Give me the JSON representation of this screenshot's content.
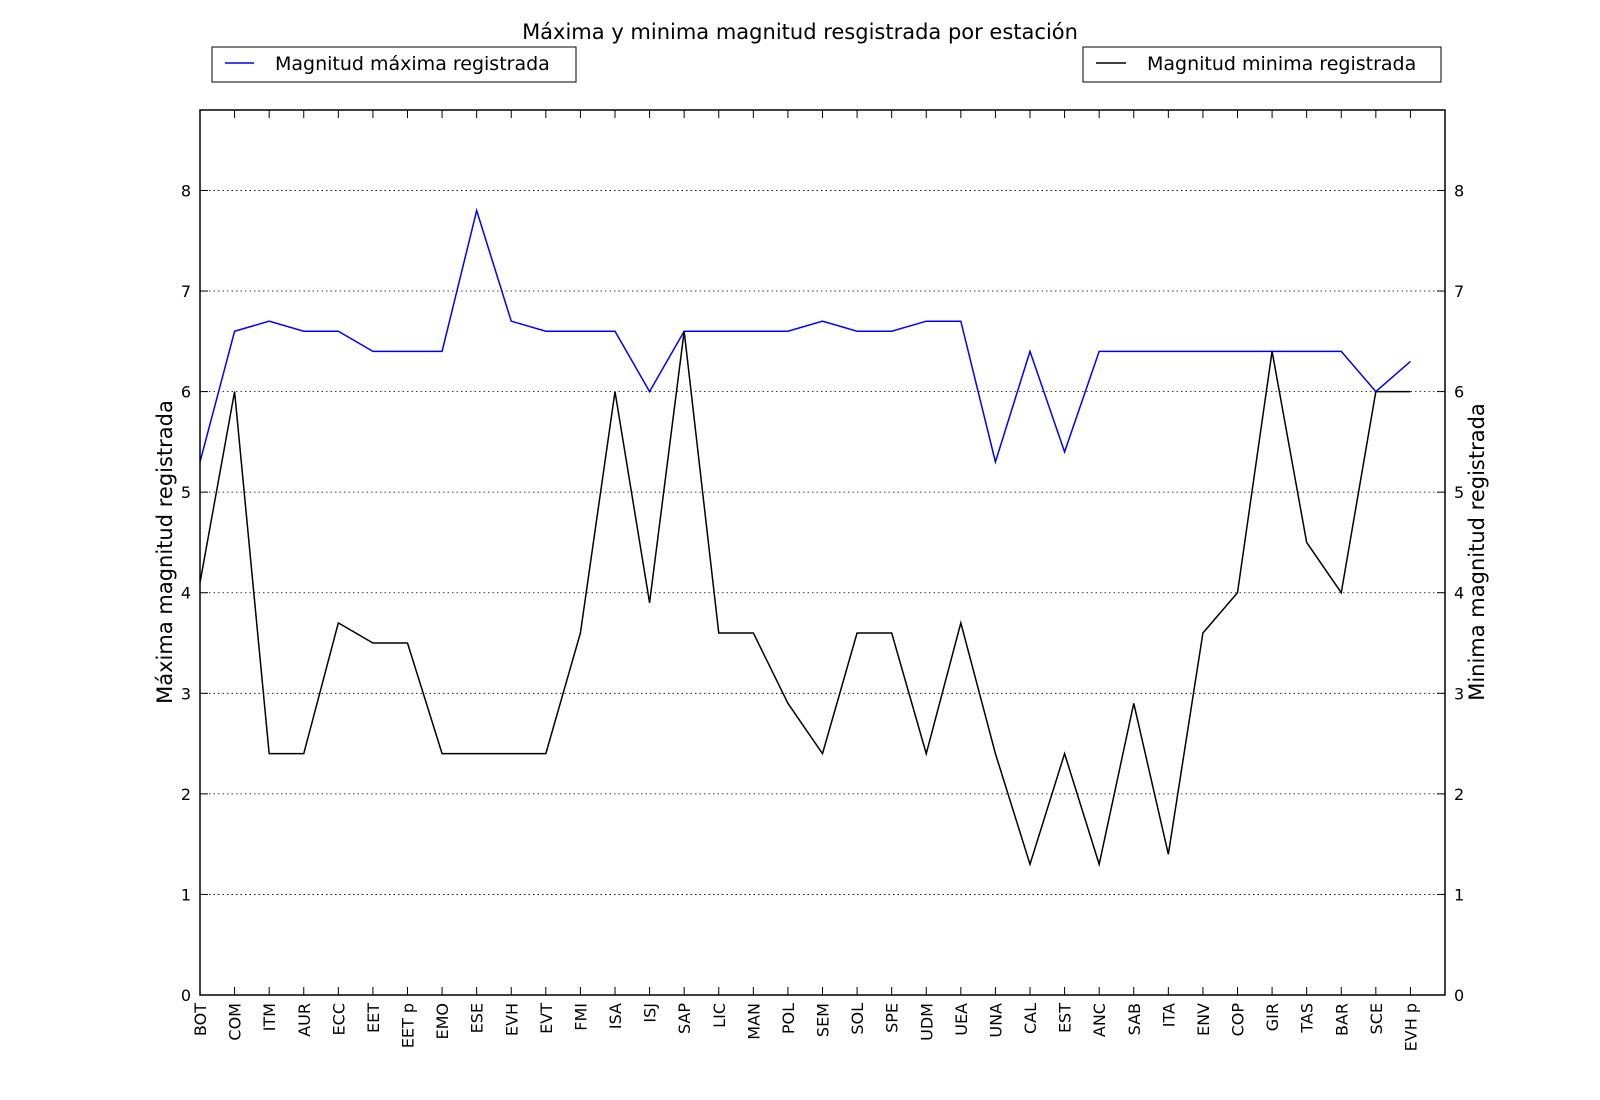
{
  "chart_data": {
    "type": "line",
    "title": "Máxima y minima magnitud resgistrada por estación",
    "ylabel_left": "Máxima magnitud registrada",
    "ylabel_right": "Minima magnitud registrada",
    "ylim": [
      0,
      8.8
    ],
    "yticks": [
      0,
      1,
      2,
      3,
      4,
      5,
      6,
      7,
      8
    ],
    "grid": "horizontal dotted",
    "categories": [
      "BOT",
      "COM",
      "ITM",
      "AUR",
      "ECC",
      "EET",
      "EET p",
      "EMO",
      "ESE",
      "EVH",
      "EVT",
      "FMI",
      "ISA",
      "ISJ",
      "SAP",
      "LIC",
      "MAN",
      "POL",
      "SEM",
      "SOL",
      "SPE",
      "UDM",
      "UEA",
      "UNA",
      "CAL",
      "EST",
      "ANC",
      "SAB",
      "ITA",
      "ENV",
      "COP",
      "GIR",
      "TAS",
      "BAR",
      "SCE",
      "EVH p"
    ],
    "series": [
      {
        "name": "Magnitud máxima registrada",
        "color": "#0000ff",
        "legend": "top-left",
        "axis": "left",
        "values": [
          5.3,
          6.6,
          6.7,
          6.6,
          6.6,
          6.4,
          6.4,
          6.4,
          7.8,
          6.7,
          6.6,
          6.6,
          6.6,
          6.0,
          6.6,
          6.6,
          6.6,
          6.6,
          6.7,
          6.6,
          6.6,
          6.7,
          6.7,
          5.3,
          6.4,
          5.4,
          6.4,
          6.4,
          6.4,
          6.4,
          6.4,
          6.4,
          6.4,
          6.4,
          6.0,
          6.3
        ]
      },
      {
        "name": "Magnitud minima registrada",
        "color": "#000000",
        "legend": "top-right",
        "axis": "right",
        "values": [
          4.1,
          6.0,
          2.4,
          2.4,
          3.7,
          3.5,
          3.5,
          2.4,
          2.4,
          2.4,
          2.4,
          3.6,
          6.0,
          3.9,
          6.6,
          3.6,
          3.6,
          2.9,
          2.4,
          3.6,
          3.6,
          2.4,
          3.7,
          2.4,
          1.3,
          2.4,
          1.3,
          2.9,
          1.4,
          3.6,
          4.0,
          6.4,
          4.5,
          4.0,
          6.0,
          6.0
        ]
      }
    ]
  }
}
